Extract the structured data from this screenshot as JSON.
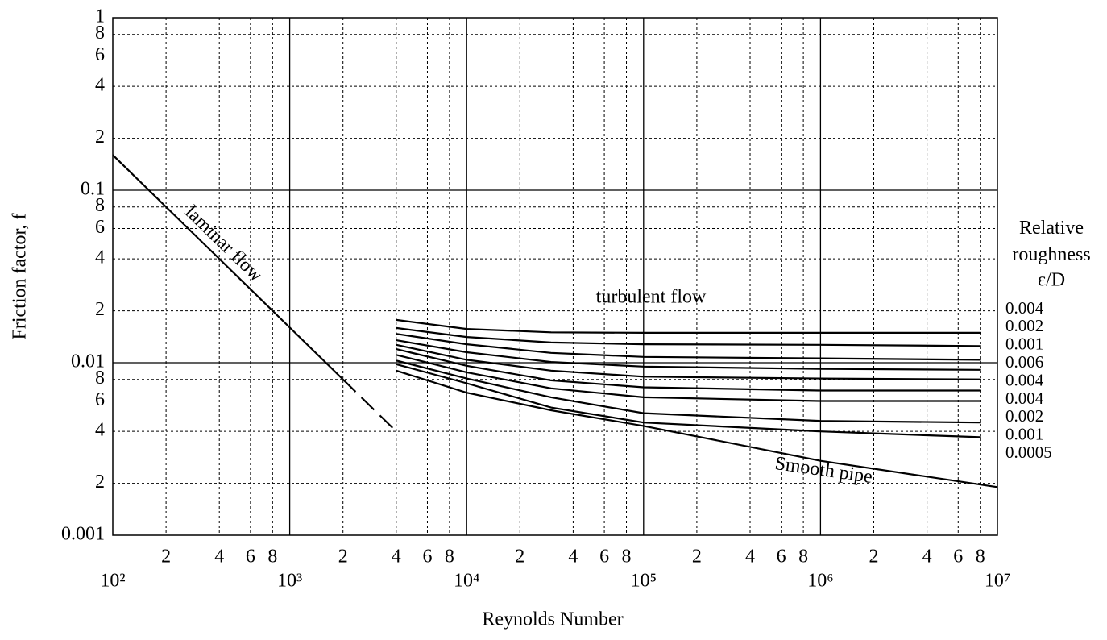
{
  "chart_data": {
    "type": "line",
    "xlabel": "Reynolds Number",
    "ylabel": "Friction factor, f",
    "log_x": true,
    "log_y": true,
    "grid": true,
    "color": "#000000",
    "xlim": [
      100,
      10000000
    ],
    "ylim": [
      0.001,
      1
    ],
    "xticks": [
      {
        "value": 100,
        "label": "10²"
      },
      {
        "value": 200,
        "label": "2"
      },
      {
        "value": 400,
        "label": "4"
      },
      {
        "value": 600,
        "label": "6"
      },
      {
        "value": 800,
        "label": "8"
      },
      {
        "value": 1000,
        "label": "10³"
      },
      {
        "value": 2000,
        "label": "2"
      },
      {
        "value": 4000,
        "label": "4"
      },
      {
        "value": 6000,
        "label": "6"
      },
      {
        "value": 8000,
        "label": "8"
      },
      {
        "value": 10000,
        "label": "10⁴"
      },
      {
        "value": 20000,
        "label": "2"
      },
      {
        "value": 40000,
        "label": "4"
      },
      {
        "value": 60000,
        "label": "6"
      },
      {
        "value": 80000,
        "label": "8"
      },
      {
        "value": 100000,
        "label": "10⁵"
      },
      {
        "value": 200000,
        "label": "2"
      },
      {
        "value": 400000,
        "label": "4"
      },
      {
        "value": 600000,
        "label": "6"
      },
      {
        "value": 800000,
        "label": "8"
      },
      {
        "value": 1000000,
        "label": "10⁶"
      },
      {
        "value": 2000000,
        "label": "2"
      },
      {
        "value": 4000000,
        "label": "4"
      },
      {
        "value": 6000000,
        "label": "6"
      },
      {
        "value": 8000000,
        "label": "8"
      },
      {
        "value": 10000000,
        "label": "10⁷"
      }
    ],
    "yticks": [
      0.001,
      {
        "value": 0.002,
        "label": "2"
      },
      {
        "value": 0.004,
        "label": "4"
      },
      {
        "value": 0.006,
        "label": "6"
      },
      {
        "value": 0.008,
        "label": "8"
      },
      0.01,
      {
        "value": 0.02,
        "label": "2"
      },
      {
        "value": 0.04,
        "label": "4"
      },
      {
        "value": 0.06,
        "label": "6"
      },
      {
        "value": 0.08,
        "label": "8"
      },
      0.1,
      {
        "value": 0.2,
        "label": "2"
      },
      {
        "value": 0.4,
        "label": "4"
      },
      {
        "value": 0.6,
        "label": "6"
      },
      {
        "value": 0.8,
        "label": "8"
      },
      1
    ],
    "annotations": [
      "turbulent flow",
      "Relative roughness",
      "ε/D"
    ],
    "annotated_lines": [
      {
        "name": "laminar flow",
        "x": [
          100,
          2000
        ],
        "values": [
          0.16,
          0.008
        ]
      },
      {
        "x": [
          2000,
          4000
        ],
        "values": [
          0.008,
          0.004
        ],
        "dash": true
      },
      {
        "name": "Smooth pipe",
        "x": [
          4000,
          10000,
          30000,
          100000,
          1000000,
          10000000
        ],
        "values": [
          0.009,
          0.0067,
          0.0053,
          0.0043,
          0.0027,
          0.0019
        ]
      }
    ],
    "series": [
      {
        "name": "0.004",
        "x": [
          4000,
          10000,
          30000,
          100000,
          1000000,
          8000000
        ],
        "values": [
          0.0177,
          0.0157,
          0.015,
          0.0149,
          0.0149,
          0.0149
        ]
      },
      {
        "name": "0.002",
        "x": [
          4000,
          10000,
          30000,
          100000,
          1000000,
          8000000
        ],
        "values": [
          0.0159,
          0.0141,
          0.0131,
          0.0128,
          0.0127,
          0.0125
        ]
      },
      {
        "name": "0.001",
        "x": [
          4000,
          10000,
          30000,
          100000,
          1000000,
          8000000
        ],
        "values": [
          0.0147,
          0.0128,
          0.0114,
          0.0108,
          0.0106,
          0.0104
        ]
      },
      {
        "name": "0.006",
        "x": [
          4000,
          10000,
          30000,
          100000,
          1000000,
          8000000
        ],
        "values": [
          0.0135,
          0.0115,
          0.0101,
          0.0095,
          0.0092,
          0.0091
        ]
      },
      {
        "name": "0.004",
        "x": [
          4000,
          10000,
          30000,
          100000,
          1000000,
          8000000
        ],
        "values": [
          0.0127,
          0.0104,
          0.009,
          0.0083,
          0.0081,
          0.008
        ]
      },
      {
        "name": "0.004",
        "x": [
          4000,
          10000,
          30000,
          100000,
          1000000,
          8000000
        ],
        "values": [
          0.012,
          0.0096,
          0.0079,
          0.0072,
          0.0069,
          0.0069
        ]
      },
      {
        "name": "0.002",
        "x": [
          4000,
          10000,
          30000,
          100000,
          1000000,
          8000000
        ],
        "values": [
          0.0111,
          0.0088,
          0.0071,
          0.0063,
          0.006,
          0.006
        ]
      },
      {
        "name": "0.001",
        "x": [
          4000,
          10000,
          30000,
          100000,
          1000000,
          8000000
        ],
        "values": [
          0.0103,
          0.0081,
          0.0063,
          0.0051,
          0.0046,
          0.0045
        ]
      },
      {
        "name": "0.0005",
        "x": [
          4000,
          10000,
          30000,
          100000,
          1000000,
          8000000
        ],
        "values": [
          0.0098,
          0.0076,
          0.0055,
          0.0045,
          0.004,
          0.0037
        ]
      }
    ]
  }
}
